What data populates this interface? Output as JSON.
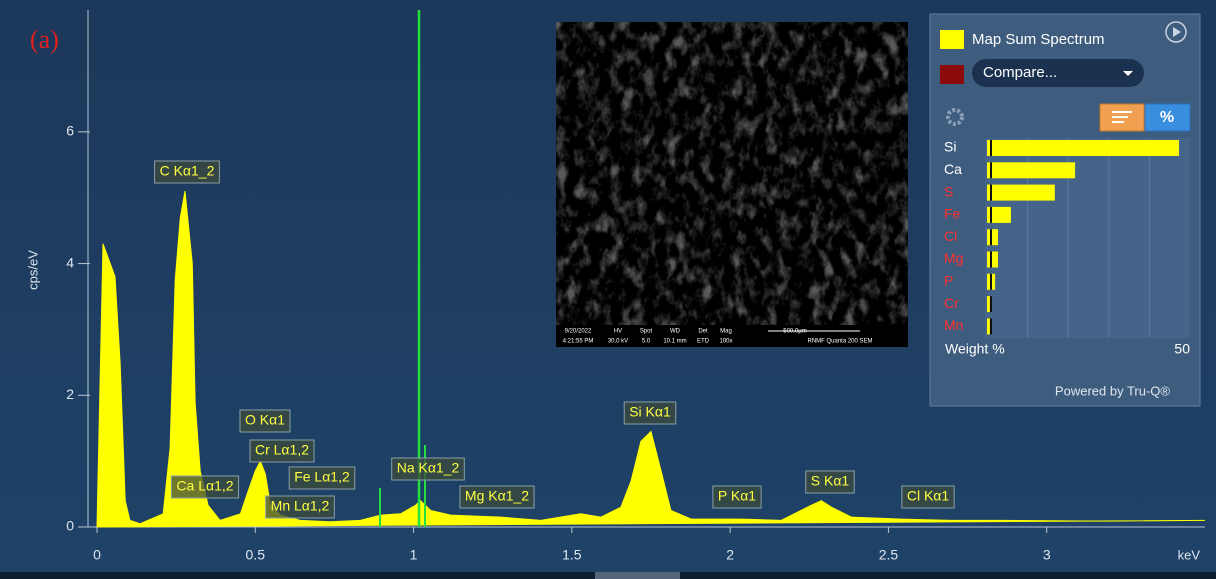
{
  "panel_label": "(a)",
  "compare_dropdown": "Compare...",
  "percent_button": "%",
  "powered_by": "Powered by Tru-Q®",
  "sem_info": [
    "9/20/2022",
    "4:21:55 PM",
    "HV",
    "30.0 kV",
    "Spot",
    "5.0",
    "WD",
    "10.1 mm",
    "Det",
    "ETD",
    "Mag",
    "100x",
    "500.0µm",
    "RNMF Quanta 200 SEM"
  ],
  "chart_data": [
    {
      "type": "area",
      "x_label": "keV",
      "y_label": "cps/eV",
      "x": [
        0,
        0.019,
        0.057,
        0.073,
        0.089,
        0.104,
        0.136,
        0.209,
        0.231,
        0.247,
        0.263,
        0.278,
        0.301,
        0.31,
        0.326,
        0.351,
        0.389,
        0.453,
        0.478,
        0.5,
        0.516,
        0.532,
        0.547,
        0.579,
        0.642,
        0.737,
        0.832,
        0.896,
        0.959,
        1.006,
        1.022,
        1.054,
        1.117,
        1.275,
        1.402,
        1.528,
        1.592,
        1.655,
        1.687,
        1.718,
        1.75,
        1.782,
        1.813,
        1.877,
        2.035,
        2.161,
        2.256,
        2.288,
        2.32,
        2.383,
        2.541,
        2.699,
        2.858,
        3.174,
        3.5
      ],
      "series": [
        {
          "name": "Map Sum Spectrum",
          "color": "#ffff00",
          "values": [
            0,
            4.3,
            3.8,
            2.5,
            0.4,
            0.1,
            0.05,
            0.2,
            1.2,
            3.75,
            4.7,
            5.1,
            4.0,
            1.9,
            0.85,
            0.33,
            0.1,
            0.2,
            0.55,
            0.85,
            1.0,
            0.8,
            0.35,
            0.18,
            0.1,
            0.08,
            0.1,
            0.18,
            0.2,
            0.33,
            0.4,
            0.25,
            0.18,
            0.15,
            0.1,
            0.2,
            0.15,
            0.3,
            0.7,
            1.3,
            1.45,
            0.85,
            0.25,
            0.12,
            0.12,
            0.1,
            0.33,
            0.4,
            0.3,
            0.15,
            0.12,
            0.1,
            0.1,
            0.09,
            0.1
          ]
        }
      ],
      "xlim": [
        0,
        3.5
      ],
      "ylim": [
        0,
        7.85
      ],
      "xticks": [
        0,
        0.5,
        1,
        1.5,
        2,
        2.5,
        3
      ],
      "yticks": [
        0,
        2,
        4,
        6
      ],
      "annotations": [
        "C Kα1_2",
        "Ca Lα1,2",
        "O Kα1",
        "Cr Lα1,2",
        "Fe Lα1,2",
        "Mn Lα1,2",
        "Na Kα1_2",
        "Mg Kα1_2",
        "Si Kα1",
        "P Kα1",
        "S Kα1",
        "Cl Kα1"
      ]
    },
    {
      "type": "hbar",
      "x_label": "Weight %",
      "categories": [
        "Si",
        "Ca",
        "S",
        "Fe",
        "Cl",
        "Mg",
        "P",
        "Cr",
        "Mn"
      ],
      "values": [
        47.3,
        21.7,
        16.7,
        5.9,
        2.7,
        2.7,
        2.0,
        0.7,
        0.7
      ],
      "color": "#ffff00",
      "label_colors": [
        "#ffffff",
        "#ffffff",
        "#ff3030",
        "#ff3030",
        "#ff3030",
        "#ff3030",
        "#ff3030",
        "#ff3030",
        "#ff3030"
      ],
      "xlim": [
        0,
        50
      ],
      "xticks": [
        50
      ]
    }
  ]
}
